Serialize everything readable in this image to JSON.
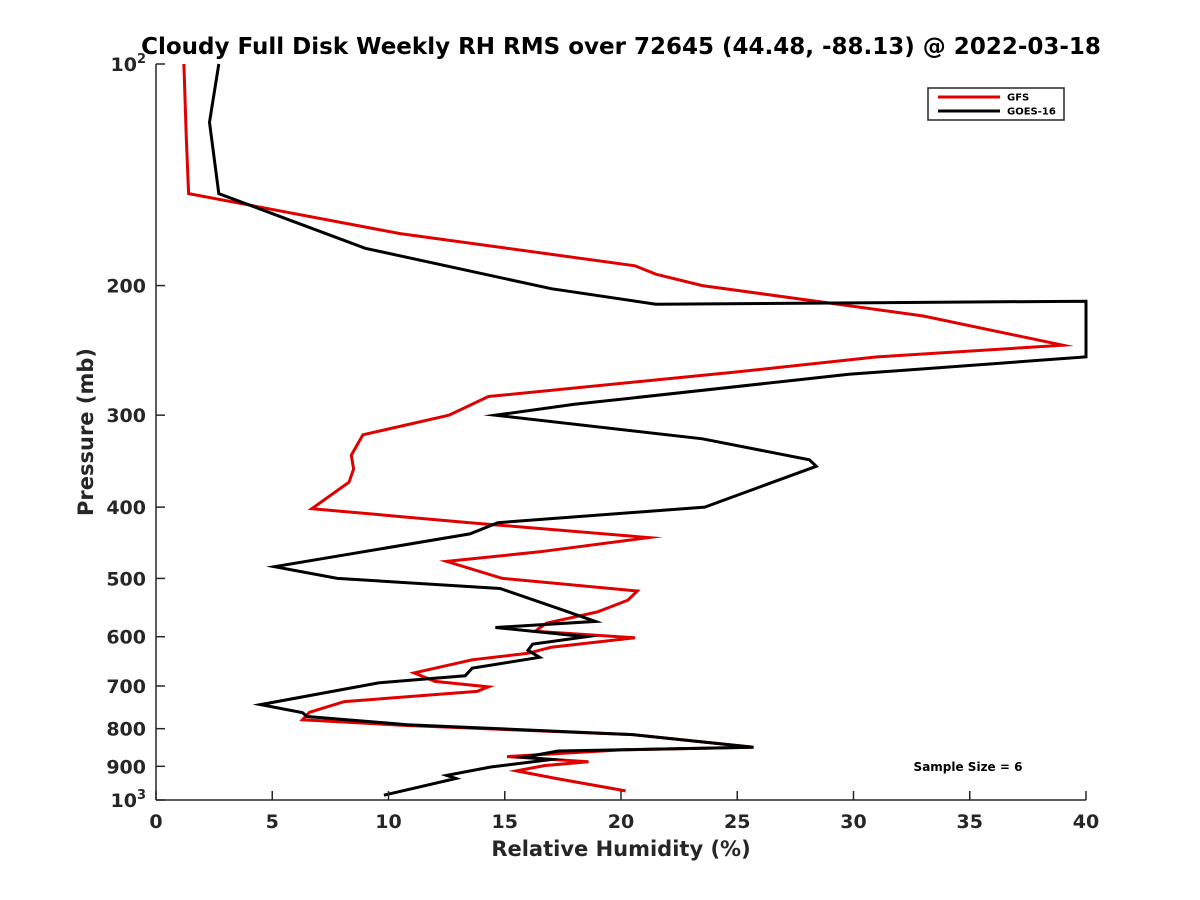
{
  "chart_data": {
    "type": "line",
    "title": "Cloudy Full Disk Weekly RH RMS over 72645 (44.48, -88.13) @ 2022-03-18",
    "xlabel": "Relative Humidity (%)",
    "ylabel": "Pressure (mb)",
    "xlim": [
      0,
      40
    ],
    "ylim": [
      100,
      1000
    ],
    "y_scale": "log",
    "y_reversed": true,
    "x_ticks": [
      "0",
      "5",
      "10",
      "15",
      "20",
      "25",
      "30",
      "35",
      "40"
    ],
    "y_ticks": [
      {
        "value": 100,
        "base": "10",
        "exp": "2"
      },
      {
        "value": 200,
        "label": "200"
      },
      {
        "value": 300,
        "label": "300"
      },
      {
        "value": 400,
        "label": "400"
      },
      {
        "value": 500,
        "label": "500"
      },
      {
        "value": 600,
        "label": "600"
      },
      {
        "value": 700,
        "label": "700"
      },
      {
        "value": 800,
        "label": "800"
      },
      {
        "value": 900,
        "label": "900"
      },
      {
        "value": 1000,
        "base": "10",
        "exp": "3"
      }
    ],
    "grid": false,
    "legend_position": "top-right",
    "annotation": "Sample Size = 6",
    "series": [
      {
        "name": "GFS",
        "color": "#e00000",
        "points": [
          [
            1.2,
            100
          ],
          [
            1.3,
            125
          ],
          [
            1.4,
            150
          ],
          [
            10.5,
            170
          ],
          [
            20.6,
            188
          ],
          [
            21.5,
            193
          ],
          [
            23.5,
            200
          ],
          [
            33.0,
            220
          ],
          [
            39.0,
            241
          ],
          [
            31.0,
            250
          ],
          [
            25.0,
            262
          ],
          [
            14.3,
            283
          ],
          [
            12.6,
            300
          ],
          [
            8.9,
            319
          ],
          [
            8.4,
            340
          ],
          [
            8.5,
            355
          ],
          [
            8.3,
            370
          ],
          [
            6.7,
            402
          ],
          [
            13.5,
            420
          ],
          [
            21.2,
            440
          ],
          [
            16.5,
            460
          ],
          [
            12.5,
            474
          ],
          [
            14.9,
            500
          ],
          [
            20.7,
            520
          ],
          [
            20.3,
            535
          ],
          [
            19.0,
            555
          ],
          [
            16.8,
            575
          ],
          [
            16.3,
            590
          ],
          [
            20.6,
            602
          ],
          [
            17.0,
            620
          ],
          [
            16.0,
            632
          ],
          [
            13.6,
            645
          ],
          [
            11.1,
            672
          ],
          [
            12.0,
            690
          ],
          [
            14.3,
            702
          ],
          [
            13.8,
            712
          ],
          [
            8.1,
            735
          ],
          [
            6.6,
            760
          ],
          [
            6.3,
            778
          ],
          [
            10.8,
            792
          ],
          [
            20.5,
            815
          ],
          [
            25.7,
            848
          ],
          [
            20.0,
            855
          ],
          [
            15.1,
            873
          ],
          [
            18.6,
            887
          ],
          [
            16.7,
            898
          ],
          [
            15.5,
            913
          ],
          [
            17.3,
            936
          ],
          [
            20.2,
            972
          ]
        ]
      },
      {
        "name": "GOES-16",
        "color": "#000000",
        "points": [
          [
            2.7,
            100
          ],
          [
            2.3,
            120
          ],
          [
            2.7,
            150
          ],
          [
            5.3,
            161
          ],
          [
            9.0,
            178
          ],
          [
            17.0,
            202
          ],
          [
            21.5,
            212
          ],
          [
            40.0,
            210
          ],
          [
            40.0,
            250
          ],
          [
            29.8,
            264
          ],
          [
            18.0,
            290
          ],
          [
            14.6,
            300
          ],
          [
            23.5,
            323
          ],
          [
            28.1,
            345
          ],
          [
            28.4,
            352
          ],
          [
            23.6,
            400
          ],
          [
            14.7,
            420
          ],
          [
            13.5,
            435
          ],
          [
            5.1,
            482
          ],
          [
            7.8,
            500
          ],
          [
            14.8,
            516
          ],
          [
            17.5,
            552
          ],
          [
            18.9,
            572
          ],
          [
            14.6,
            583
          ],
          [
            18.5,
            600
          ],
          [
            16.2,
            614
          ],
          [
            16.0,
            626
          ],
          [
            16.5,
            640
          ],
          [
            13.6,
            662
          ],
          [
            13.3,
            678
          ],
          [
            9.6,
            693
          ],
          [
            4.5,
            742
          ],
          [
            6.3,
            761
          ],
          [
            6.5,
            770
          ],
          [
            10.8,
            790
          ],
          [
            20.5,
            815
          ],
          [
            25.7,
            848
          ],
          [
            17.3,
            858
          ],
          [
            15.8,
            875
          ],
          [
            17.0,
            881
          ],
          [
            14.4,
            902
          ],
          [
            12.5,
            926
          ],
          [
            12.9,
            935
          ],
          [
            9.8,
            985
          ]
        ]
      }
    ]
  }
}
